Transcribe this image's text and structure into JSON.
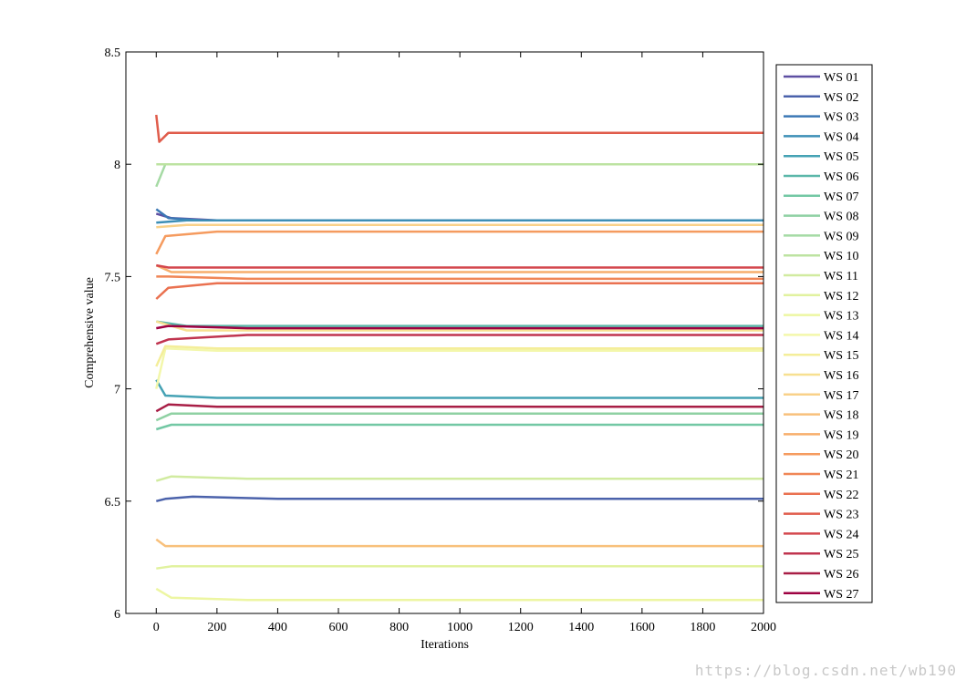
{
  "chart_data": {
    "type": "line",
    "title": "",
    "xlabel": "Iterations",
    "ylabel": "Comprehensive value",
    "xlim": [
      -100,
      2000
    ],
    "ylim": [
      6,
      8.5
    ],
    "xticks": [
      0,
      200,
      400,
      600,
      800,
      1000,
      1200,
      1400,
      1600,
      1800,
      2000
    ],
    "yticks": [
      6,
      6.5,
      7,
      7.5,
      8,
      8.5
    ],
    "ytick_labels": [
      "6",
      "6.5",
      "7",
      "7.5",
      "8",
      "8.5"
    ],
    "grid": false,
    "legend_position": "right",
    "series": [
      {
        "name": "WS 01",
        "color": "#5e4fa2",
        "values": [
          [
            0,
            7.78
          ],
          [
            50,
            7.76
          ],
          [
            200,
            7.75
          ],
          [
            2000,
            7.75
          ]
        ]
      },
      {
        "name": "WS 02",
        "color": "#4b62ab",
        "values": [
          [
            0,
            6.5
          ],
          [
            30,
            6.51
          ],
          [
            120,
            6.52
          ],
          [
            400,
            6.51
          ],
          [
            2000,
            6.51
          ]
        ]
      },
      {
        "name": "WS 03",
        "color": "#3b78b5",
        "values": [
          [
            0,
            7.8
          ],
          [
            40,
            7.76
          ],
          [
            150,
            7.75
          ],
          [
            2000,
            7.75
          ]
        ]
      },
      {
        "name": "WS 04",
        "color": "#3d8fb6",
        "values": [
          [
            0,
            7.74
          ],
          [
            100,
            7.75
          ],
          [
            2000,
            7.75
          ]
        ]
      },
      {
        "name": "WS 05",
        "color": "#45a2b4",
        "values": [
          [
            0,
            7.04
          ],
          [
            30,
            6.97
          ],
          [
            200,
            6.96
          ],
          [
            2000,
            6.96
          ]
        ]
      },
      {
        "name": "WS 06",
        "color": "#5bb7a9",
        "values": [
          [
            0,
            7.3
          ],
          [
            100,
            7.28
          ],
          [
            2000,
            7.28
          ]
        ]
      },
      {
        "name": "WS 07",
        "color": "#73c8a4",
        "values": [
          [
            0,
            6.82
          ],
          [
            50,
            6.84
          ],
          [
            200,
            6.84
          ],
          [
            2000,
            6.84
          ]
        ]
      },
      {
        "name": "WS 08",
        "color": "#8fd1a3",
        "values": [
          [
            0,
            6.86
          ],
          [
            50,
            6.89
          ],
          [
            300,
            6.89
          ],
          [
            2000,
            6.89
          ]
        ]
      },
      {
        "name": "WS 09",
        "color": "#a5daa4",
        "values": [
          [
            0,
            7.9
          ],
          [
            30,
            8.0
          ],
          [
            200,
            8.0
          ],
          [
            2000,
            8.0
          ]
        ]
      },
      {
        "name": "WS 10",
        "color": "#bde3a1",
        "values": [
          [
            0,
            8.0
          ],
          [
            200,
            8.0
          ],
          [
            2000,
            8.0
          ]
        ]
      },
      {
        "name": "WS 11",
        "color": "#d1eba0",
        "values": [
          [
            0,
            6.59
          ],
          [
            50,
            6.61
          ],
          [
            300,
            6.6
          ],
          [
            2000,
            6.6
          ]
        ]
      },
      {
        "name": "WS 12",
        "color": "#e1f29f",
        "values": [
          [
            0,
            6.2
          ],
          [
            50,
            6.21
          ],
          [
            500,
            6.21
          ],
          [
            2000,
            6.21
          ]
        ]
      },
      {
        "name": "WS 13",
        "color": "#edf6a2",
        "values": [
          [
            0,
            6.11
          ],
          [
            50,
            6.07
          ],
          [
            300,
            6.06
          ],
          [
            2000,
            6.06
          ]
        ]
      },
      {
        "name": "WS 14",
        "color": "#f3f7ab",
        "values": [
          [
            0,
            7.0
          ],
          [
            30,
            7.18
          ],
          [
            200,
            7.17
          ],
          [
            2000,
            7.17
          ]
        ]
      },
      {
        "name": "WS 15",
        "color": "#f4ee9a",
        "values": [
          [
            0,
            7.1
          ],
          [
            30,
            7.19
          ],
          [
            200,
            7.18
          ],
          [
            2000,
            7.18
          ]
        ]
      },
      {
        "name": "WS 16",
        "color": "#f7e091",
        "values": [
          [
            0,
            7.3
          ],
          [
            100,
            7.26
          ],
          [
            2000,
            7.26
          ]
        ]
      },
      {
        "name": "WS 17",
        "color": "#f9d189",
        "values": [
          [
            0,
            7.72
          ],
          [
            100,
            7.73
          ],
          [
            2000,
            7.73
          ]
        ]
      },
      {
        "name": "WS 18",
        "color": "#f8c07b",
        "values": [
          [
            0,
            6.33
          ],
          [
            30,
            6.3
          ],
          [
            200,
            6.3
          ],
          [
            2000,
            6.3
          ]
        ]
      },
      {
        "name": "WS 19",
        "color": "#f7ae6c",
        "values": [
          [
            0,
            7.55
          ],
          [
            50,
            7.52
          ],
          [
            300,
            7.52
          ],
          [
            2000,
            7.52
          ]
        ]
      },
      {
        "name": "WS 20",
        "color": "#f59b5f",
        "values": [
          [
            0,
            7.6
          ],
          [
            30,
            7.68
          ],
          [
            200,
            7.7
          ],
          [
            2000,
            7.7
          ]
        ]
      },
      {
        "name": "WS 21",
        "color": "#f08656",
        "values": [
          [
            0,
            7.5
          ],
          [
            40,
            7.5
          ],
          [
            300,
            7.49
          ],
          [
            2000,
            7.49
          ]
        ]
      },
      {
        "name": "WS 22",
        "color": "#ea7150",
        "values": [
          [
            0,
            7.4
          ],
          [
            40,
            7.45
          ],
          [
            200,
            7.47
          ],
          [
            2000,
            7.47
          ]
        ]
      },
      {
        "name": "WS 23",
        "color": "#e05c4b",
        "values": [
          [
            0,
            8.22
          ],
          [
            10,
            8.1
          ],
          [
            40,
            8.14
          ],
          [
            200,
            8.14
          ],
          [
            2000,
            8.14
          ]
        ]
      },
      {
        "name": "WS 24",
        "color": "#d4474d",
        "values": [
          [
            0,
            7.55
          ],
          [
            40,
            7.54
          ],
          [
            200,
            7.54
          ],
          [
            2000,
            7.54
          ]
        ]
      },
      {
        "name": "WS 25",
        "color": "#c0344f",
        "values": [
          [
            0,
            7.2
          ],
          [
            40,
            7.22
          ],
          [
            300,
            7.24
          ],
          [
            2000,
            7.24
          ]
        ]
      },
      {
        "name": "WS 26",
        "color": "#a81e46",
        "values": [
          [
            0,
            6.9
          ],
          [
            40,
            6.93
          ],
          [
            200,
            6.92
          ],
          [
            2000,
            6.92
          ]
        ]
      },
      {
        "name": "WS 27",
        "color": "#9e0142",
        "values": [
          [
            0,
            7.27
          ],
          [
            40,
            7.28
          ],
          [
            300,
            7.27
          ],
          [
            2000,
            7.27
          ]
        ]
      }
    ]
  },
  "watermark": "https://blog.csdn.net/wb190"
}
